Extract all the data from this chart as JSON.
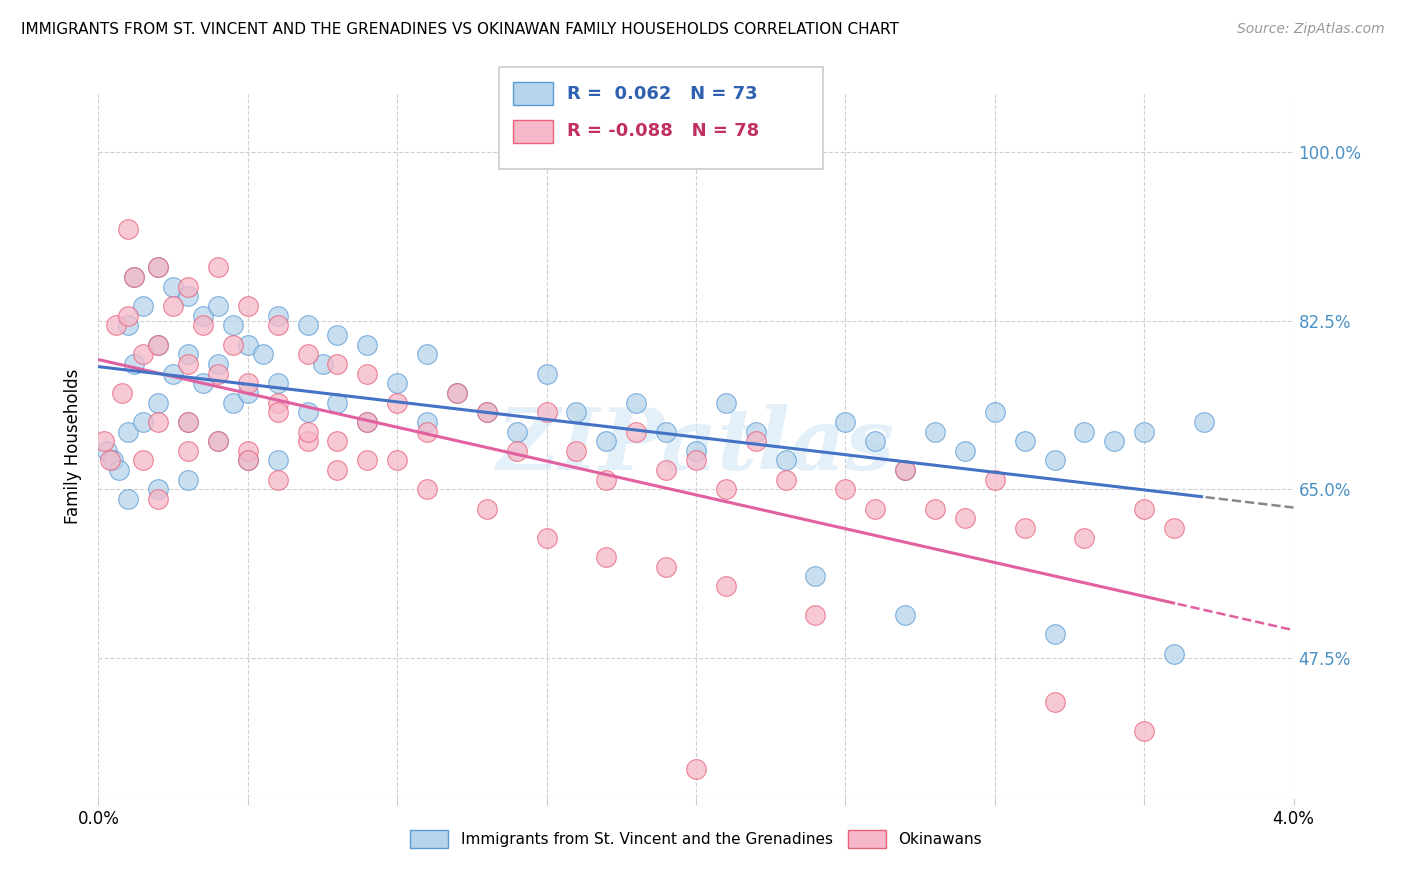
{
  "title": "IMMIGRANTS FROM ST. VINCENT AND THE GRENADINES VS OKINAWAN FAMILY HOUSEHOLDS CORRELATION CHART",
  "source": "Source: ZipAtlas.com",
  "ylabel": "Family Households",
  "ytick_values": [
    0.475,
    0.65,
    0.825,
    1.0
  ],
  "ytick_labels": [
    "47.5%",
    "65.0%",
    "82.5%",
    "100.0%"
  ],
  "xmin": 0.0,
  "xmax": 0.04,
  "ymin": 0.33,
  "ymax": 1.06,
  "blue_R": 0.062,
  "blue_N": 73,
  "pink_R": -0.088,
  "pink_N": 78,
  "blue_color": "#b8d4ea",
  "pink_color": "#f5b8c8",
  "blue_edge_color": "#5b9bd5",
  "pink_edge_color": "#e8607a",
  "blue_line_color": "#4472c4",
  "pink_line_color": "#e060a0",
  "legend_blue_label": "Immigrants from St. Vincent and the Grenadines",
  "legend_pink_label": "Okinawans",
  "watermark": "ZIPatlas",
  "blue_x": [
    0.0003,
    0.0005,
    0.0007,
    0.001,
    0.001,
    0.001,
    0.0012,
    0.0012,
    0.0015,
    0.0015,
    0.002,
    0.002,
    0.002,
    0.002,
    0.0025,
    0.0025,
    0.003,
    0.003,
    0.003,
    0.003,
    0.0035,
    0.0035,
    0.004,
    0.004,
    0.004,
    0.0045,
    0.0045,
    0.005,
    0.005,
    0.005,
    0.0055,
    0.006,
    0.006,
    0.006,
    0.007,
    0.007,
    0.0075,
    0.008,
    0.008,
    0.009,
    0.009,
    0.01,
    0.011,
    0.011,
    0.012,
    0.013,
    0.014,
    0.015,
    0.016,
    0.017,
    0.018,
    0.019,
    0.02,
    0.021,
    0.022,
    0.023,
    0.025,
    0.026,
    0.027,
    0.028,
    0.029,
    0.03,
    0.031,
    0.032,
    0.033,
    0.034,
    0.035,
    0.024,
    0.027,
    0.032,
    0.036,
    0.037
  ],
  "blue_y": [
    0.69,
    0.68,
    0.67,
    0.82,
    0.71,
    0.64,
    0.87,
    0.78,
    0.84,
    0.72,
    0.88,
    0.8,
    0.74,
    0.65,
    0.86,
    0.77,
    0.85,
    0.79,
    0.72,
    0.66,
    0.83,
    0.76,
    0.84,
    0.78,
    0.7,
    0.82,
    0.74,
    0.8,
    0.75,
    0.68,
    0.79,
    0.83,
    0.76,
    0.68,
    0.82,
    0.73,
    0.78,
    0.81,
    0.74,
    0.8,
    0.72,
    0.76,
    0.79,
    0.72,
    0.75,
    0.73,
    0.71,
    0.77,
    0.73,
    0.7,
    0.74,
    0.71,
    0.69,
    0.74,
    0.71,
    0.68,
    0.72,
    0.7,
    0.67,
    0.71,
    0.69,
    0.73,
    0.7,
    0.68,
    0.71,
    0.7,
    0.71,
    0.56,
    0.52,
    0.5,
    0.48,
    0.72
  ],
  "pink_x": [
    0.0002,
    0.0004,
    0.0006,
    0.0008,
    0.001,
    0.001,
    0.0012,
    0.0015,
    0.0015,
    0.002,
    0.002,
    0.002,
    0.002,
    0.0025,
    0.003,
    0.003,
    0.003,
    0.0035,
    0.004,
    0.004,
    0.0045,
    0.005,
    0.005,
    0.005,
    0.006,
    0.006,
    0.006,
    0.007,
    0.007,
    0.008,
    0.008,
    0.009,
    0.009,
    0.01,
    0.011,
    0.012,
    0.013,
    0.014,
    0.015,
    0.016,
    0.017,
    0.018,
    0.019,
    0.02,
    0.021,
    0.022,
    0.023,
    0.025,
    0.026,
    0.027,
    0.028,
    0.029,
    0.03,
    0.031,
    0.033,
    0.035,
    0.036,
    0.003,
    0.004,
    0.005,
    0.006,
    0.007,
    0.008,
    0.009,
    0.01,
    0.011,
    0.013,
    0.015,
    0.017,
    0.019,
    0.02,
    0.021,
    0.024,
    0.032,
    0.035
  ],
  "pink_y": [
    0.7,
    0.68,
    0.82,
    0.75,
    0.83,
    0.92,
    0.87,
    0.79,
    0.68,
    0.88,
    0.8,
    0.72,
    0.64,
    0.84,
    0.86,
    0.78,
    0.69,
    0.82,
    0.88,
    0.77,
    0.8,
    0.84,
    0.76,
    0.69,
    0.82,
    0.74,
    0.66,
    0.79,
    0.7,
    0.78,
    0.7,
    0.77,
    0.68,
    0.74,
    0.71,
    0.75,
    0.73,
    0.69,
    0.73,
    0.69,
    0.66,
    0.71,
    0.67,
    0.68,
    0.65,
    0.7,
    0.66,
    0.65,
    0.63,
    0.67,
    0.63,
    0.62,
    0.66,
    0.61,
    0.6,
    0.63,
    0.61,
    0.72,
    0.7,
    0.68,
    0.73,
    0.71,
    0.67,
    0.72,
    0.68,
    0.65,
    0.63,
    0.6,
    0.58,
    0.57,
    0.36,
    0.55,
    0.52,
    0.43,
    0.4
  ]
}
